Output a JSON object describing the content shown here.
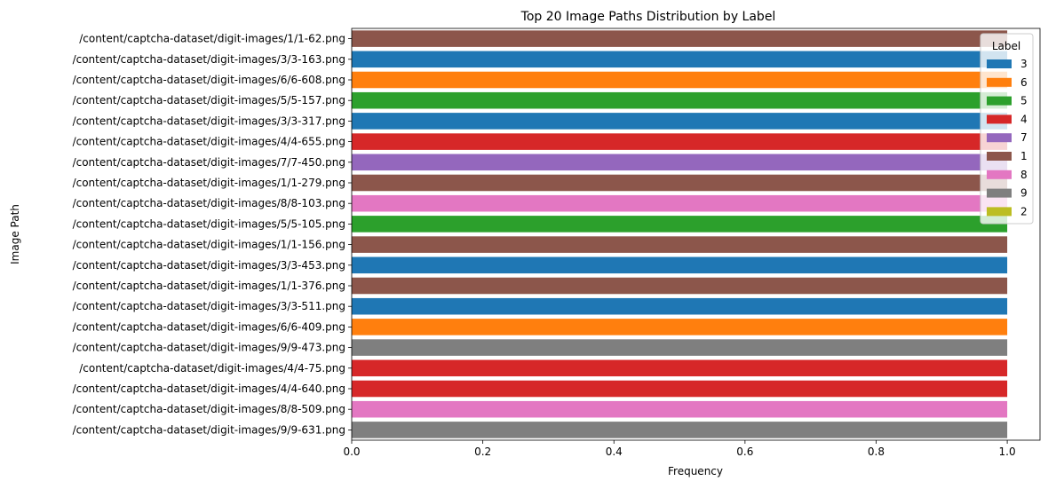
{
  "chart_data": {
    "type": "bar",
    "orientation": "horizontal",
    "title": "Top 20 Image Paths Distribution by Label",
    "xlabel": "Frequency",
    "ylabel": "Image Path",
    "xlim": [
      0,
      1.05
    ],
    "xticks": [
      "0.0",
      "0.2",
      "0.4",
      "0.6",
      "0.8",
      "1.0"
    ],
    "xtick_values": [
      0,
      0.2,
      0.4,
      0.6,
      0.8,
      1.0
    ],
    "grid": false,
    "legend": {
      "title": "Label",
      "placement": "top-right",
      "entries": [
        {
          "label": "3",
          "color": "#1f77b4"
        },
        {
          "label": "6",
          "color": "#ff7f0e"
        },
        {
          "label": "5",
          "color": "#2ca02c"
        },
        {
          "label": "4",
          "color": "#d62728"
        },
        {
          "label": "7",
          "color": "#9467bd"
        },
        {
          "label": "1",
          "color": "#8c564b"
        },
        {
          "label": "8",
          "color": "#e377c2"
        },
        {
          "label": "9",
          "color": "#7f7f7f"
        },
        {
          "label": "2",
          "color": "#bcbd22"
        }
      ]
    },
    "bars": [
      {
        "path": "/content/captcha-dataset/digit-images/1/1-62.png",
        "label": "1",
        "value": 1
      },
      {
        "path": "/content/captcha-dataset/digit-images/3/3-163.png",
        "label": "3",
        "value": 1
      },
      {
        "path": "/content/captcha-dataset/digit-images/6/6-608.png",
        "label": "6",
        "value": 1
      },
      {
        "path": "/content/captcha-dataset/digit-images/5/5-157.png",
        "label": "5",
        "value": 1
      },
      {
        "path": "/content/captcha-dataset/digit-images/3/3-317.png",
        "label": "3",
        "value": 1
      },
      {
        "path": "/content/captcha-dataset/digit-images/4/4-655.png",
        "label": "4",
        "value": 1
      },
      {
        "path": "/content/captcha-dataset/digit-images/7/7-450.png",
        "label": "7",
        "value": 1
      },
      {
        "path": "/content/captcha-dataset/digit-images/1/1-279.png",
        "label": "1",
        "value": 1
      },
      {
        "path": "/content/captcha-dataset/digit-images/8/8-103.png",
        "label": "8",
        "value": 1
      },
      {
        "path": "/content/captcha-dataset/digit-images/5/5-105.png",
        "label": "5",
        "value": 1
      },
      {
        "path": "/content/captcha-dataset/digit-images/1/1-156.png",
        "label": "1",
        "value": 1
      },
      {
        "path": "/content/captcha-dataset/digit-images/3/3-453.png",
        "label": "3",
        "value": 1
      },
      {
        "path": "/content/captcha-dataset/digit-images/1/1-376.png",
        "label": "1",
        "value": 1
      },
      {
        "path": "/content/captcha-dataset/digit-images/3/3-511.png",
        "label": "3",
        "value": 1
      },
      {
        "path": "/content/captcha-dataset/digit-images/6/6-409.png",
        "label": "6",
        "value": 1
      },
      {
        "path": "/content/captcha-dataset/digit-images/9/9-473.png",
        "label": "9",
        "value": 1
      },
      {
        "path": "/content/captcha-dataset/digit-images/4/4-75.png",
        "label": "4",
        "value": 1
      },
      {
        "path": "/content/captcha-dataset/digit-images/4/4-640.png",
        "label": "4",
        "value": 1
      },
      {
        "path": "/content/captcha-dataset/digit-images/8/8-509.png",
        "label": "8",
        "value": 1
      },
      {
        "path": "/content/captcha-dataset/digit-images/9/9-631.png",
        "label": "9",
        "value": 1
      }
    ]
  }
}
